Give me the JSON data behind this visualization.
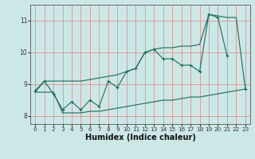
{
  "xlabel": "Humidex (Indice chaleur)",
  "bg_color": "#cce8e6",
  "grid_color": "#e08080",
  "line_color": "#1a6b5a",
  "x_values": [
    0,
    1,
    2,
    3,
    4,
    5,
    6,
    7,
    8,
    9,
    10,
    11,
    12,
    13,
    14,
    15,
    16,
    17,
    18,
    19,
    20,
    21,
    22,
    23
  ],
  "series_main": [
    8.8,
    9.1,
    8.7,
    8.2,
    8.45,
    8.2,
    8.5,
    8.3,
    9.1,
    8.9,
    9.4,
    9.5,
    10.0,
    10.1,
    9.8,
    9.8,
    9.6,
    9.6,
    9.4,
    11.2,
    11.1,
    9.9,
    null,
    8.85
  ],
  "series_min": [
    8.75,
    8.75,
    8.75,
    8.1,
    8.1,
    8.1,
    8.15,
    8.15,
    8.2,
    8.25,
    8.3,
    8.35,
    8.4,
    8.45,
    8.5,
    8.5,
    8.55,
    8.6,
    8.6,
    8.65,
    8.7,
    8.75,
    8.8,
    8.85
  ],
  "series_max": [
    8.75,
    9.1,
    9.1,
    9.1,
    9.1,
    9.1,
    9.15,
    9.2,
    9.25,
    9.3,
    9.4,
    9.5,
    10.0,
    10.1,
    10.15,
    10.15,
    10.2,
    10.2,
    10.25,
    11.2,
    11.15,
    11.1,
    11.1,
    8.85
  ],
  "ylim": [
    7.75,
    11.5
  ],
  "yticks": [
    8,
    9,
    10,
    11
  ],
  "xlim": [
    -0.5,
    23.5
  ],
  "xtick_labels": [
    "0",
    "1",
    "2",
    "3",
    "4",
    "5",
    "6",
    "7",
    "8",
    "9",
    "10",
    "11",
    "12",
    "13",
    "14",
    "15",
    "16",
    "17",
    "18",
    "19",
    "20",
    "21",
    "22",
    "23"
  ]
}
